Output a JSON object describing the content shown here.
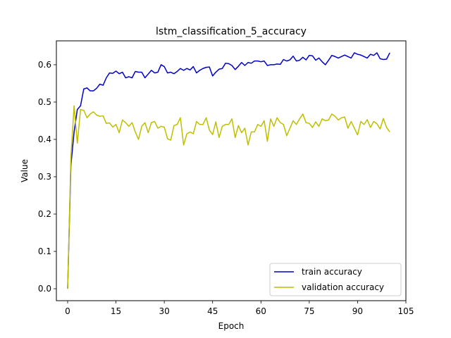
{
  "chart_data": {
    "type": "line",
    "title": "lstm_classification_5_accuracy",
    "xlabel": "Epoch",
    "ylabel": "Value",
    "xlim": [
      -3.5,
      105
    ],
    "ylim": [
      -0.032,
      0.664
    ],
    "xticks": [
      0,
      15,
      30,
      45,
      60,
      75,
      90,
      105
    ],
    "yticks": [
      0.0,
      0.1,
      0.2,
      0.3,
      0.4,
      0.5,
      0.6
    ],
    "ytick_labels": [
      "0.0",
      "0.1",
      "0.2",
      "0.3",
      "0.4",
      "0.5",
      "0.6"
    ],
    "grid": false,
    "legend_position": "lower-right",
    "series": [
      {
        "name": "train accuracy",
        "color": "#0000cc",
        "x": [
          0,
          1,
          2,
          3,
          4,
          5,
          6,
          7,
          8,
          9,
          10,
          11,
          12,
          13,
          14,
          15,
          16,
          17,
          18,
          19,
          20,
          21,
          22,
          23,
          24,
          25,
          26,
          27,
          28,
          29,
          30,
          31,
          32,
          33,
          34,
          35,
          36,
          37,
          38,
          39,
          40,
          41,
          42,
          43,
          44,
          45,
          46,
          47,
          48,
          49,
          50,
          51,
          52,
          53,
          54,
          55,
          56,
          57,
          58,
          59,
          60,
          61,
          62,
          63,
          64,
          65,
          66,
          67,
          68,
          69,
          70,
          71,
          72,
          73,
          74,
          75,
          76,
          77,
          78,
          79,
          80,
          81,
          82,
          83,
          84,
          85,
          86,
          87,
          88,
          89,
          90,
          91,
          92,
          93,
          94,
          95,
          96,
          97,
          98,
          99,
          100
        ],
        "values": [
          0.0,
          0.33,
          0.42,
          0.48,
          0.49,
          0.535,
          0.538,
          0.53,
          0.53,
          0.537,
          0.548,
          0.545,
          0.565,
          0.578,
          0.577,
          0.583,
          0.576,
          0.58,
          0.565,
          0.568,
          0.565,
          0.582,
          0.58,
          0.58,
          0.565,
          0.575,
          0.585,
          0.578,
          0.58,
          0.6,
          0.595,
          0.578,
          0.58,
          0.576,
          0.582,
          0.59,
          0.585,
          0.59,
          0.586,
          0.595,
          0.578,
          0.585,
          0.59,
          0.593,
          0.594,
          0.57,
          0.58,
          0.588,
          0.59,
          0.604,
          0.603,
          0.598,
          0.587,
          0.596,
          0.606,
          0.598,
          0.606,
          0.604,
          0.61,
          0.61,
          0.608,
          0.61,
          0.598,
          0.6,
          0.6,
          0.602,
          0.601,
          0.614,
          0.61,
          0.613,
          0.623,
          0.61,
          0.612,
          0.62,
          0.613,
          0.625,
          0.624,
          0.612,
          0.618,
          0.608,
          0.6,
          0.612,
          0.625,
          0.622,
          0.618,
          0.622,
          0.626,
          0.622,
          0.618,
          0.632,
          0.628,
          0.626,
          0.622,
          0.618,
          0.628,
          0.625,
          0.632,
          0.616,
          0.614,
          0.615,
          0.632
        ]
      },
      {
        "name": "validation accuracy",
        "color": "#bfbf00",
        "x": [
          0,
          1,
          2,
          3,
          4,
          5,
          6,
          7,
          8,
          9,
          10,
          11,
          12,
          13,
          14,
          15,
          16,
          17,
          18,
          19,
          20,
          21,
          22,
          23,
          24,
          25,
          26,
          27,
          28,
          29,
          30,
          31,
          32,
          33,
          34,
          35,
          36,
          37,
          38,
          39,
          40,
          41,
          42,
          43,
          44,
          45,
          46,
          47,
          48,
          49,
          50,
          51,
          52,
          53,
          54,
          55,
          56,
          57,
          58,
          59,
          60,
          61,
          62,
          63,
          64,
          65,
          66,
          67,
          68,
          69,
          70,
          71,
          72,
          73,
          74,
          75,
          76,
          77,
          78,
          79,
          80,
          81,
          82,
          83,
          84,
          85,
          86,
          87,
          88,
          89,
          90,
          91,
          92,
          93,
          94,
          95,
          96,
          97,
          98,
          99,
          100
        ],
        "values": [
          0.0,
          0.35,
          0.49,
          0.39,
          0.48,
          0.478,
          0.458,
          0.468,
          0.474,
          0.465,
          0.462,
          0.463,
          0.443,
          0.444,
          0.433,
          0.44,
          0.418,
          0.452,
          0.445,
          0.435,
          0.445,
          0.42,
          0.4,
          0.435,
          0.445,
          0.418,
          0.445,
          0.448,
          0.43,
          0.435,
          0.433,
          0.402,
          0.398,
          0.437,
          0.44,
          0.458,
          0.385,
          0.415,
          0.42,
          0.415,
          0.448,
          0.44,
          0.44,
          0.458,
          0.425,
          0.413,
          0.447,
          0.405,
          0.435,
          0.44,
          0.44,
          0.455,
          0.405,
          0.437,
          0.418,
          0.43,
          0.385,
          0.42,
          0.42,
          0.44,
          0.435,
          0.45,
          0.395,
          0.455,
          0.435,
          0.458,
          0.445,
          0.44,
          0.41,
          0.43,
          0.45,
          0.44,
          0.455,
          0.468,
          0.445,
          0.443,
          0.432,
          0.447,
          0.435,
          0.455,
          0.45,
          0.452,
          0.468,
          0.462,
          0.452,
          0.458,
          0.46,
          0.43,
          0.448,
          0.43,
          0.412,
          0.448,
          0.44,
          0.453,
          0.432,
          0.448,
          0.442,
          0.428,
          0.456,
          0.432,
          0.42
        ]
      }
    ]
  }
}
